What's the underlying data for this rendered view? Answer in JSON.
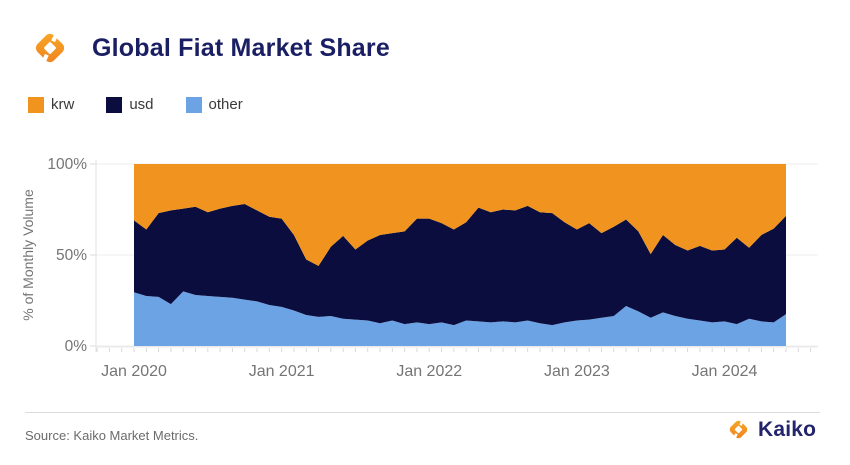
{
  "header": {
    "title": "Global Fiat Market Share"
  },
  "footer": {
    "source": "Source: Kaiko Market Metrics.",
    "brand": "Kaiko"
  },
  "chart_data": {
    "type": "area",
    "stacked": true,
    "title": "Global Fiat Market Share",
    "ylabel": "% of Monthly Volume",
    "ylim": [
      0,
      100
    ],
    "yticks": [
      {
        "value": 0,
        "label": "0%"
      },
      {
        "value": 50,
        "label": "50%"
      },
      {
        "value": 100,
        "label": "100%"
      }
    ],
    "xtick_labels": [
      "Jan 2020",
      "Jan 2021",
      "Jan 2022",
      "Jan 2023",
      "Jan 2024"
    ],
    "grid": "horizontal-light",
    "legend_position": "top-left",
    "stack_bottom_to_top": [
      "other",
      "usd",
      "krw"
    ],
    "x_months": [
      "2020-01",
      "2020-02",
      "2020-03",
      "2020-04",
      "2020-05",
      "2020-06",
      "2020-07",
      "2020-08",
      "2020-09",
      "2020-10",
      "2020-11",
      "2020-12",
      "2021-01",
      "2021-02",
      "2021-03",
      "2021-04",
      "2021-05",
      "2021-06",
      "2021-07",
      "2021-08",
      "2021-09",
      "2021-10",
      "2021-11",
      "2021-12",
      "2022-01",
      "2022-02",
      "2022-03",
      "2022-04",
      "2022-05",
      "2022-06",
      "2022-07",
      "2022-08",
      "2022-09",
      "2022-10",
      "2022-11",
      "2022-12",
      "2023-01",
      "2023-02",
      "2023-03",
      "2023-04",
      "2023-05",
      "2023-06",
      "2023-07",
      "2023-08",
      "2023-09",
      "2023-10",
      "2023-11",
      "2023-12",
      "2024-01",
      "2024-02",
      "2024-03",
      "2024-04",
      "2024-05",
      "2024-06"
    ],
    "series": [
      {
        "name": "krw",
        "color": "#F0941F",
        "values": [
          31,
          36,
          27,
          25.5,
          24.5,
          23.5,
          26.5,
          24.5,
          23,
          22,
          25.5,
          29,
          30,
          39,
          52.5,
          56,
          45.5,
          39.5,
          47,
          42,
          39,
          38,
          37,
          30,
          30,
          32.5,
          36,
          32,
          24,
          26.5,
          25,
          25.5,
          23,
          26.5,
          27,
          32,
          36,
          32.5,
          38,
          34.5,
          30.5,
          37,
          49.5,
          39,
          44.5,
          47.5,
          45,
          47.5,
          47,
          40.5,
          46,
          39,
          35.5,
          28.5
        ]
      },
      {
        "name": "usd",
        "color": "#0A0D3D",
        "values": [
          39.5,
          36.5,
          46,
          51.5,
          45.5,
          48.5,
          46,
          48.5,
          50.5,
          52.5,
          50,
          48.5,
          48.5,
          41.5,
          30.5,
          28,
          38,
          45.5,
          38.5,
          44,
          48.5,
          48,
          51,
          57,
          58,
          54.5,
          52.5,
          54,
          62.5,
          60.5,
          61.5,
          61.5,
          63,
          61,
          61.5,
          55,
          50,
          53,
          46.5,
          49,
          47.5,
          44,
          35,
          42.5,
          39,
          37.5,
          41,
          39.5,
          39.5,
          47.5,
          39,
          47.5,
          51.5,
          54
        ]
      },
      {
        "name": "other",
        "color": "#6CA3E5",
        "values": [
          29.5,
          27.5,
          27,
          23,
          30,
          28,
          27.5,
          27,
          26.5,
          25.5,
          24.5,
          22.5,
          21.5,
          19.5,
          17,
          16,
          16.5,
          15,
          14.5,
          14,
          12.5,
          14,
          12,
          13,
          12,
          13,
          11.5,
          14,
          13.5,
          13,
          13.5,
          13,
          14,
          12.5,
          11.5,
          13,
          14,
          14.5,
          15.5,
          16.5,
          22,
          19,
          15.5,
          18.5,
          16.5,
          15,
          14,
          13,
          13.5,
          12,
          15,
          13.5,
          13,
          17.5
        ]
      }
    ]
  }
}
